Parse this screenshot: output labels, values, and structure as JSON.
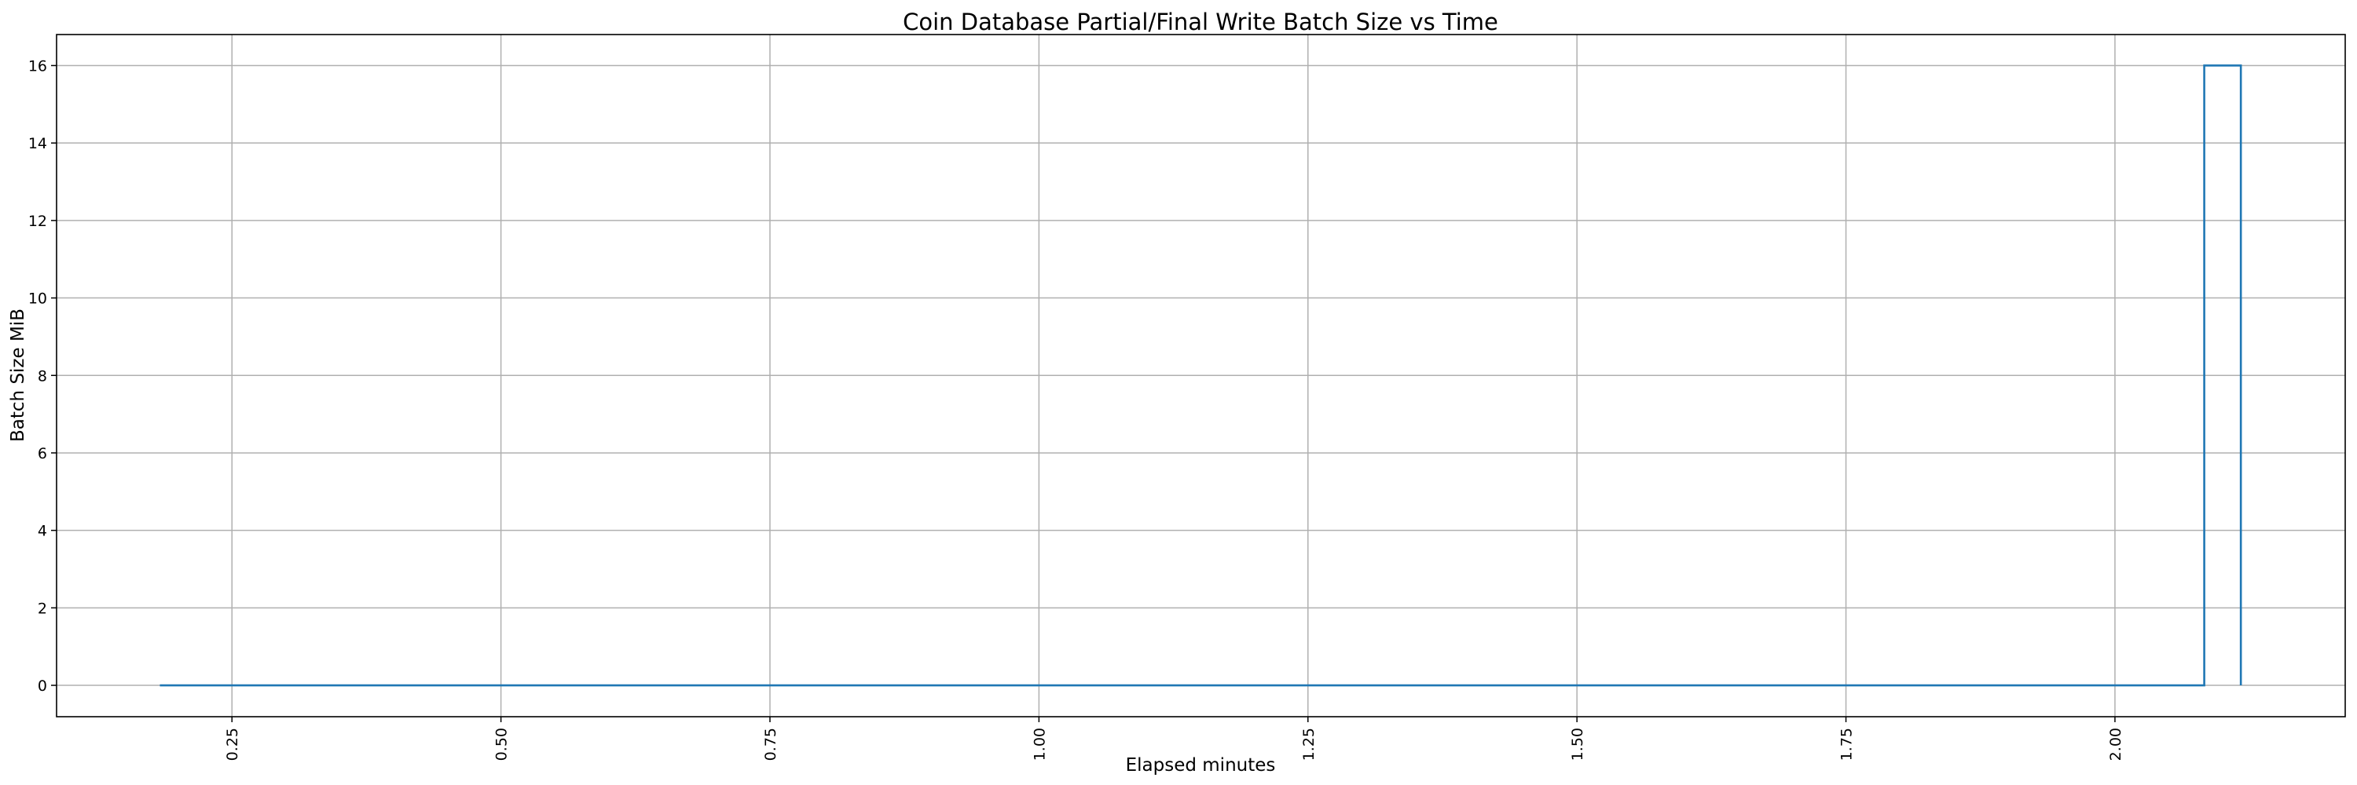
{
  "chart_data": {
    "type": "line",
    "title": "Coin Database Partial/Final Write Batch Size vs Time",
    "xlabel": "Elapsed minutes",
    "ylabel": "Batch Size MiB",
    "xlim": [
      0.087,
      2.214
    ],
    "ylim": [
      -0.81,
      16.8
    ],
    "xticks": [
      0.25,
      0.5,
      0.75,
      1.0,
      1.25,
      1.5,
      1.75,
      2.0
    ],
    "xtick_labels": [
      "0.25",
      "0.50",
      "0.75",
      "1.00",
      "1.25",
      "1.50",
      "1.75",
      "2.00"
    ],
    "yticks": [
      0,
      2,
      4,
      6,
      8,
      10,
      12,
      14,
      16
    ],
    "ytick_labels": [
      "0",
      "2",
      "4",
      "6",
      "8",
      "10",
      "12",
      "14",
      "16"
    ],
    "grid": true,
    "step": "post",
    "series": [
      {
        "color": "#1f77b4",
        "x": [
          0.183,
          2.083,
          2.117,
          2.117
        ],
        "y": [
          0,
          16,
          0,
          0
        ]
      }
    ]
  }
}
